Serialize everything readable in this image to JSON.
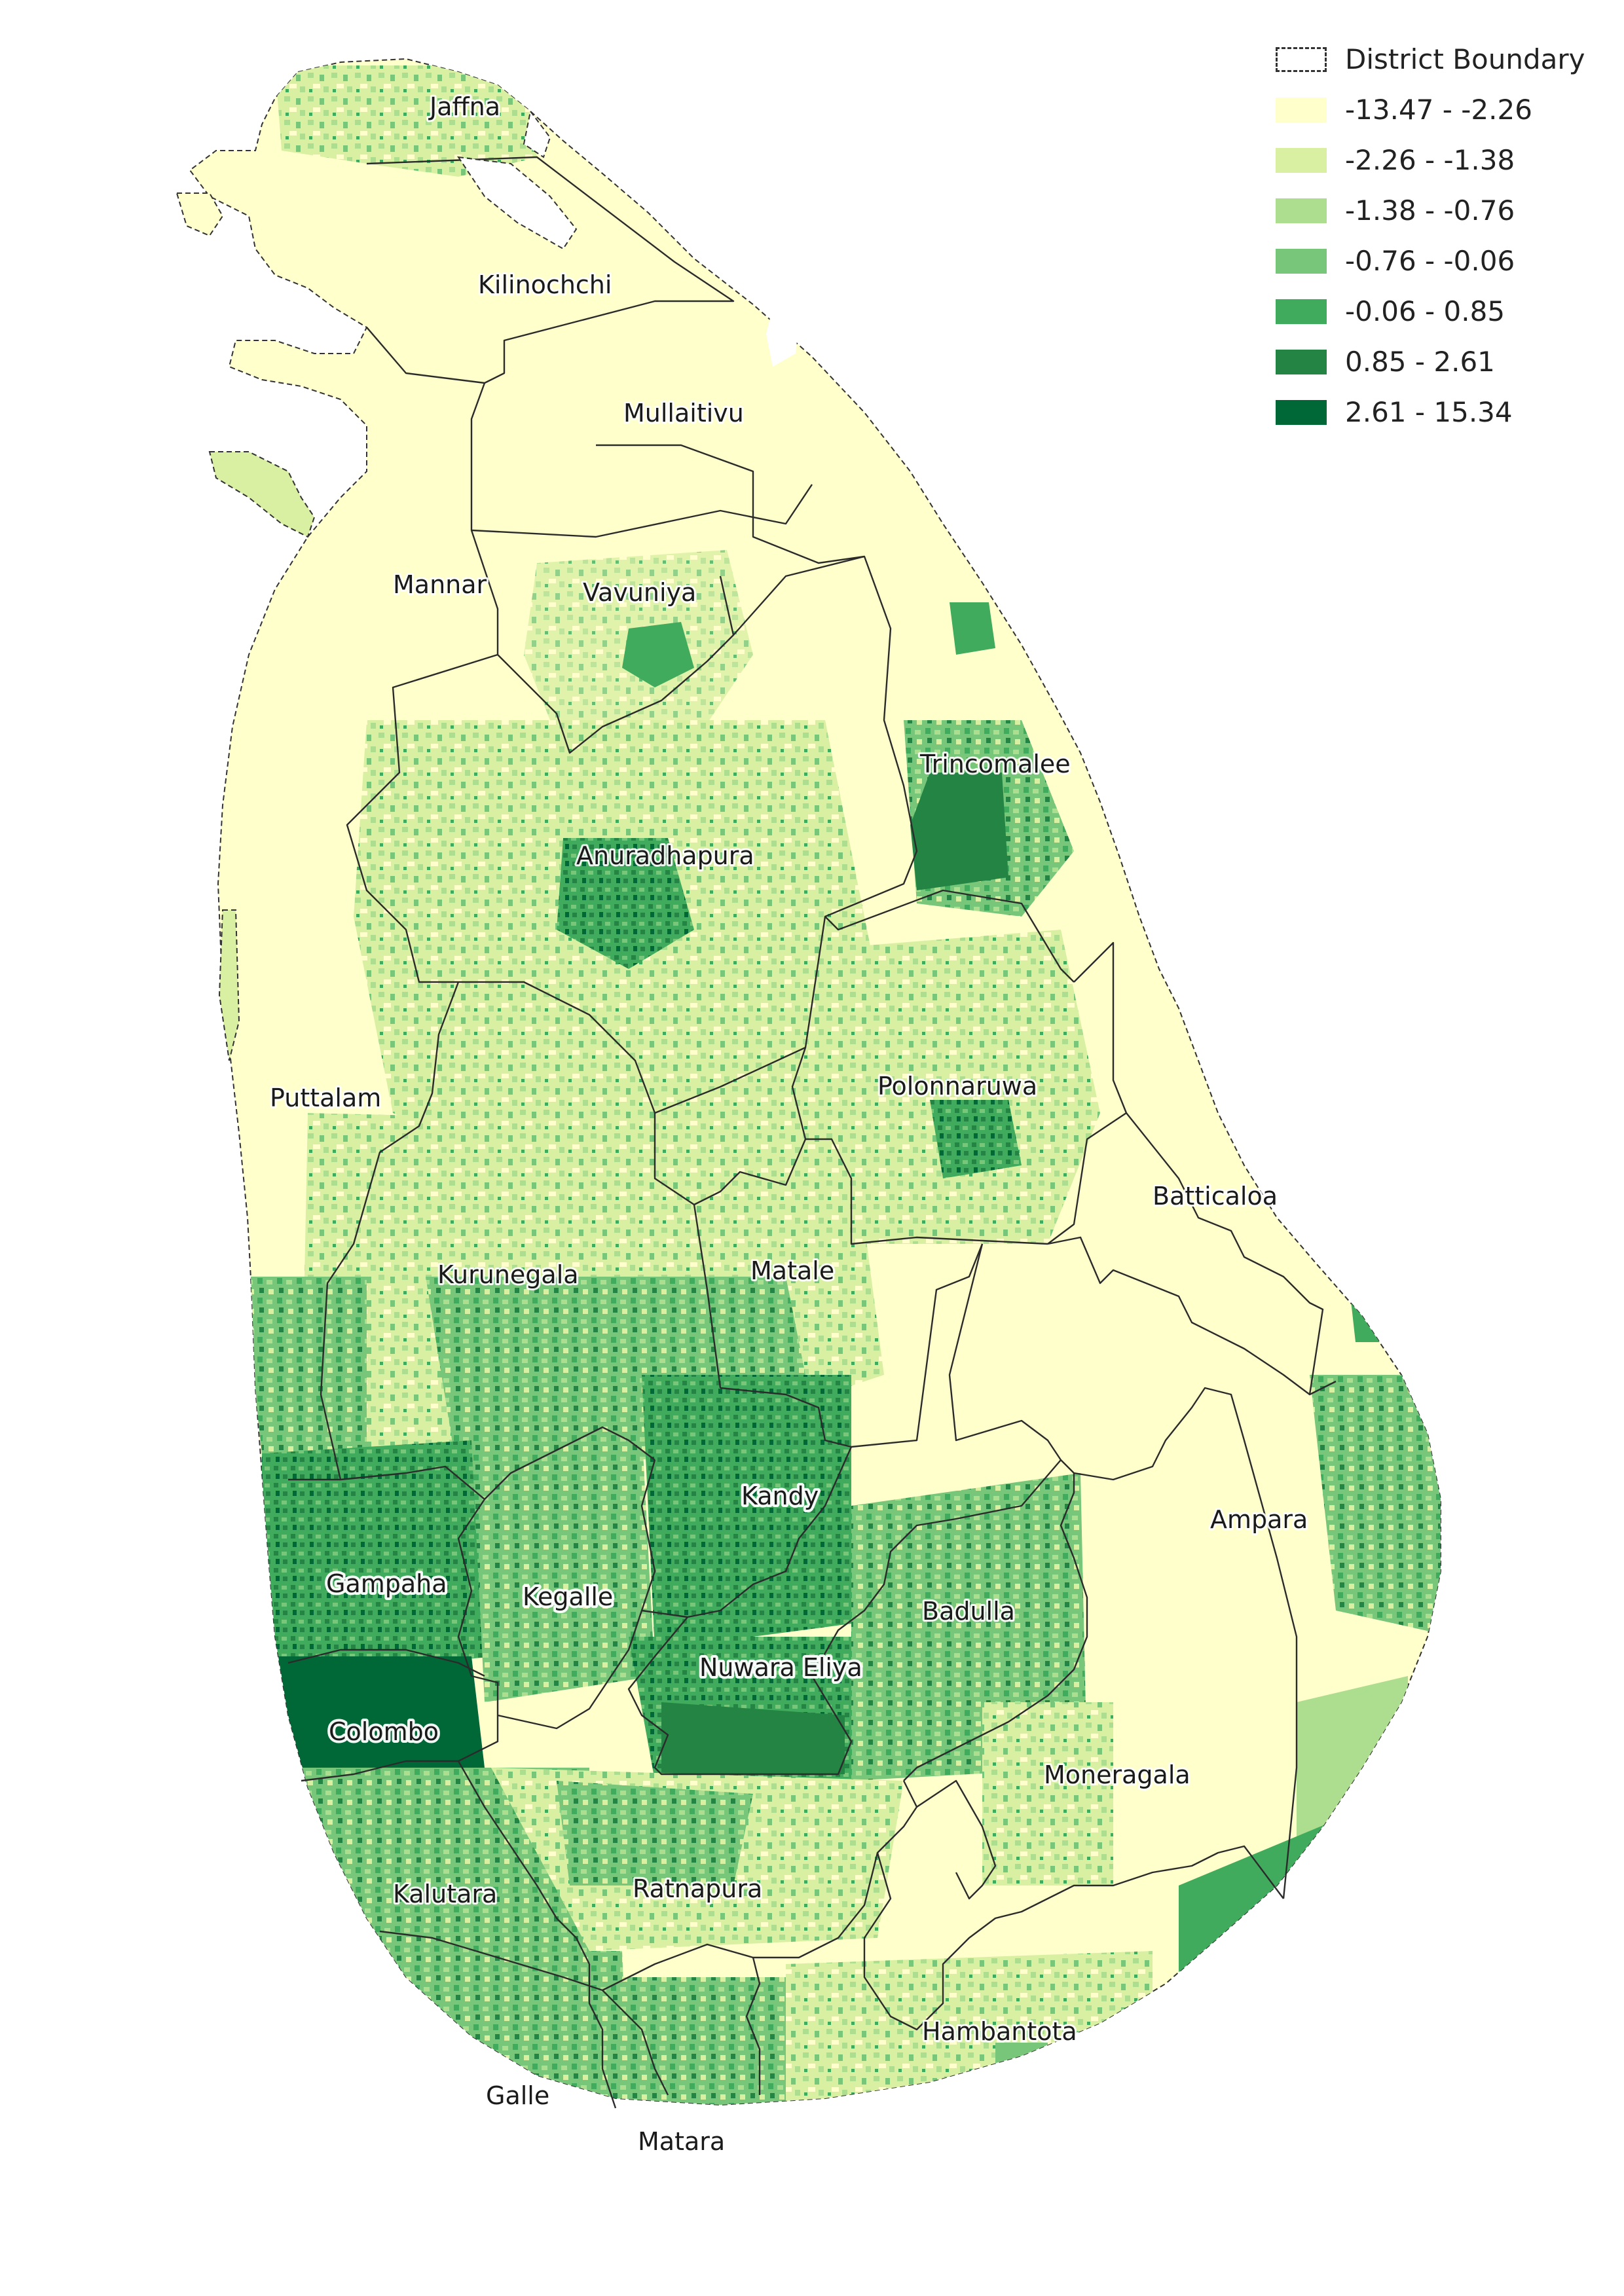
{
  "map": {
    "districts": [
      {
        "name": "Jaffna"
      },
      {
        "name": "Kilinochchi"
      },
      {
        "name": "Mullaitivu"
      },
      {
        "name": "Mannar"
      },
      {
        "name": "Vavuniya"
      },
      {
        "name": "Trincomalee"
      },
      {
        "name": "Anuradhapura"
      },
      {
        "name": "Polonnaruwa"
      },
      {
        "name": "Puttalam"
      },
      {
        "name": "Batticaloa"
      },
      {
        "name": "Kurunegala"
      },
      {
        "name": "Matale"
      },
      {
        "name": "Kandy"
      },
      {
        "name": "Ampara"
      },
      {
        "name": "Gampaha"
      },
      {
        "name": "Kegalle"
      },
      {
        "name": "Badulla"
      },
      {
        "name": "Nuwara Eliya"
      },
      {
        "name": "Colombo"
      },
      {
        "name": "Moneragala"
      },
      {
        "name": "Kalutara"
      },
      {
        "name": "Ratnapura"
      },
      {
        "name": "Hambantota"
      },
      {
        "name": "Galle"
      },
      {
        "name": "Matara"
      }
    ]
  },
  "legend": {
    "boundary_label": "District Boundary",
    "classes": [
      {
        "label": "-13.47 - -2.26",
        "color": "#ffffcc"
      },
      {
        "label": "-2.26 - -1.38",
        "color": "#d9f0a3"
      },
      {
        "label": "-1.38 - -0.76",
        "color": "#addd8e"
      },
      {
        "label": "-0.76 - -0.06",
        "color": "#78c679"
      },
      {
        "label": "-0.06 - 0.85",
        "color": "#41ab5d"
      },
      {
        "label": "0.85 - 2.61",
        "color": "#238443"
      },
      {
        "label": "2.61 - 15.34",
        "color": "#006837"
      }
    ]
  }
}
